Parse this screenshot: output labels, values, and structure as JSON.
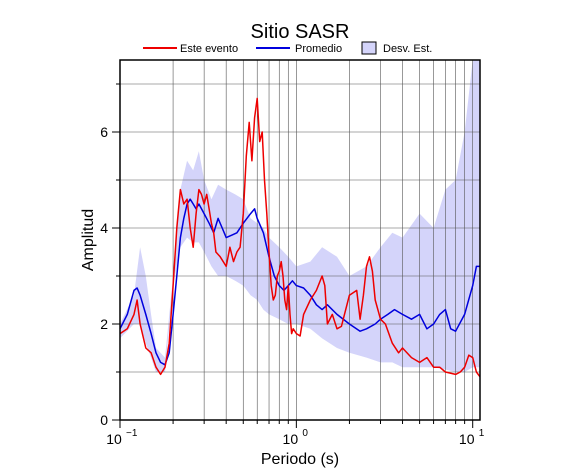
{
  "chart_data": {
    "type": "line",
    "title": "Sitio SASR",
    "xlabel": "Periodo (s)",
    "ylabel": "Amplitud",
    "x_scale": "log",
    "xlim": [
      0.1,
      11
    ],
    "ylim": [
      0,
      7.5
    ],
    "grid": true,
    "legend_position": "top",
    "x_ticks": [
      {
        "value": 0.1,
        "base": "10",
        "exp": "−1"
      },
      {
        "value": 1,
        "base": "10",
        "exp": "0"
      },
      {
        "value": 10,
        "base": "10",
        "exp": "1"
      }
    ],
    "y_ticks": [
      "0",
      "2",
      "4",
      "6"
    ],
    "y_tick_values": [
      0,
      2,
      4,
      6
    ],
    "legend": [
      {
        "label": "Este evento",
        "kind": "line",
        "color": "#ee0000"
      },
      {
        "label": "Promedio",
        "kind": "line",
        "color": "#0000dd"
      },
      {
        "label": "Desv. Est.",
        "kind": "band",
        "color": "#d4d4fa"
      }
    ],
    "band": {
      "name": "Desv. Est.",
      "color": "#d4d4fa",
      "upper": [
        [
          0.1,
          2.0
        ],
        [
          0.12,
          2.6
        ],
        [
          0.13,
          3.6
        ],
        [
          0.14,
          3.0
        ],
        [
          0.15,
          2.2
        ],
        [
          0.16,
          1.5
        ],
        [
          0.18,
          1.3
        ],
        [
          0.2,
          3.0
        ],
        [
          0.22,
          4.8
        ],
        [
          0.24,
          5.4
        ],
        [
          0.26,
          5.2
        ],
        [
          0.28,
          5.6
        ],
        [
          0.3,
          5.0
        ],
        [
          0.33,
          4.6
        ],
        [
          0.36,
          4.9
        ],
        [
          0.4,
          4.8
        ],
        [
          0.45,
          4.7
        ],
        [
          0.5,
          4.6
        ],
        [
          0.55,
          4.2
        ],
        [
          0.6,
          4.1
        ],
        [
          0.65,
          4.0
        ],
        [
          0.7,
          3.8
        ],
        [
          0.8,
          3.6
        ],
        [
          0.9,
          3.4
        ],
        [
          1.0,
          3.2
        ],
        [
          1.2,
          3.3
        ],
        [
          1.4,
          3.6
        ],
        [
          1.7,
          3.4
        ],
        [
          2.0,
          3.0
        ],
        [
          2.5,
          3.2
        ],
        [
          3.0,
          3.6
        ],
        [
          3.5,
          3.9
        ],
        [
          4.0,
          3.8
        ],
        [
          5.0,
          4.3
        ],
        [
          6.0,
          4.0
        ],
        [
          7.0,
          4.8
        ],
        [
          8.0,
          5.0
        ],
        [
          9.0,
          6.0
        ],
        [
          10.0,
          7.5
        ],
        [
          11.0,
          7.5
        ]
      ],
      "lower": [
        [
          0.1,
          1.7
        ],
        [
          0.12,
          2.0
        ],
        [
          0.13,
          2.0
        ],
        [
          0.14,
          1.6
        ],
        [
          0.15,
          1.3
        ],
        [
          0.16,
          1.0
        ],
        [
          0.18,
          1.0
        ],
        [
          0.2,
          2.8
        ],
        [
          0.22,
          3.6
        ],
        [
          0.24,
          3.8
        ],
        [
          0.26,
          3.7
        ],
        [
          0.28,
          3.7
        ],
        [
          0.3,
          3.5
        ],
        [
          0.33,
          3.2
        ],
        [
          0.36,
          3.0
        ],
        [
          0.4,
          3.0
        ],
        [
          0.45,
          2.9
        ],
        [
          0.5,
          2.8
        ],
        [
          0.55,
          2.6
        ],
        [
          0.6,
          2.5
        ],
        [
          0.65,
          2.3
        ],
        [
          0.7,
          2.2
        ],
        [
          0.8,
          2.1
        ],
        [
          0.9,
          2.0
        ],
        [
          1.0,
          2.0
        ],
        [
          1.2,
          1.9
        ],
        [
          1.4,
          1.7
        ],
        [
          1.7,
          1.5
        ],
        [
          2.0,
          1.4
        ],
        [
          2.5,
          1.3
        ],
        [
          3.0,
          1.2
        ],
        [
          3.5,
          1.2
        ],
        [
          4.0,
          1.1
        ],
        [
          5.0,
          1.1
        ],
        [
          6.0,
          1.1
        ],
        [
          7.0,
          1.05
        ],
        [
          8.0,
          1.0
        ],
        [
          9.0,
          1.0
        ],
        [
          10.0,
          1.1
        ],
        [
          11.0,
          1.1
        ]
      ]
    },
    "series": [
      {
        "name": "Promedio",
        "color": "#0000dd",
        "points": [
          [
            0.1,
            1.9
          ],
          [
            0.11,
            2.2
          ],
          [
            0.12,
            2.7
          ],
          [
            0.125,
            2.75
          ],
          [
            0.13,
            2.6
          ],
          [
            0.14,
            2.2
          ],
          [
            0.15,
            1.8
          ],
          [
            0.16,
            1.4
          ],
          [
            0.17,
            1.2
          ],
          [
            0.18,
            1.15
          ],
          [
            0.19,
            1.4
          ],
          [
            0.2,
            2.2
          ],
          [
            0.21,
            3.0
          ],
          [
            0.22,
            3.8
          ],
          [
            0.23,
            4.2
          ],
          [
            0.24,
            4.5
          ],
          [
            0.25,
            4.6
          ],
          [
            0.26,
            4.5
          ],
          [
            0.27,
            4.4
          ],
          [
            0.28,
            4.5
          ],
          [
            0.3,
            4.3
          ],
          [
            0.32,
            4.1
          ],
          [
            0.34,
            3.9
          ],
          [
            0.36,
            4.2
          ],
          [
            0.38,
            4.0
          ],
          [
            0.4,
            3.8
          ],
          [
            0.43,
            3.85
          ],
          [
            0.46,
            3.9
          ],
          [
            0.5,
            4.1
          ],
          [
            0.55,
            4.3
          ],
          [
            0.58,
            4.4
          ],
          [
            0.6,
            4.2
          ],
          [
            0.65,
            3.9
          ],
          [
            0.7,
            3.4
          ],
          [
            0.75,
            3.0
          ],
          [
            0.8,
            2.8
          ],
          [
            0.85,
            2.7
          ],
          [
            0.9,
            2.8
          ],
          [
            0.95,
            2.9
          ],
          [
            1.0,
            2.8
          ],
          [
            1.1,
            2.75
          ],
          [
            1.2,
            2.6
          ],
          [
            1.3,
            2.4
          ],
          [
            1.4,
            2.3
          ],
          [
            1.5,
            2.4
          ],
          [
            1.7,
            2.2
          ],
          [
            2.0,
            2.0
          ],
          [
            2.3,
            1.85
          ],
          [
            2.5,
            1.9
          ],
          [
            2.8,
            2.0
          ],
          [
            3.0,
            2.1
          ],
          [
            3.3,
            2.2
          ],
          [
            3.6,
            2.3
          ],
          [
            4.0,
            2.2
          ],
          [
            4.5,
            2.1
          ],
          [
            5.0,
            2.2
          ],
          [
            5.5,
            1.9
          ],
          [
            6.0,
            2.0
          ],
          [
            6.5,
            2.2
          ],
          [
            7.0,
            2.3
          ],
          [
            7.5,
            1.9
          ],
          [
            8.0,
            1.85
          ],
          [
            9.0,
            2.2
          ],
          [
            10.0,
            2.8
          ],
          [
            10.5,
            3.2
          ],
          [
            11.0,
            3.2
          ]
        ]
      },
      {
        "name": "Este evento",
        "color": "#ee0000",
        "points": [
          [
            0.1,
            1.8
          ],
          [
            0.11,
            1.9
          ],
          [
            0.12,
            2.2
          ],
          [
            0.125,
            2.5
          ],
          [
            0.13,
            2.0
          ],
          [
            0.14,
            1.5
          ],
          [
            0.15,
            1.4
          ],
          [
            0.16,
            1.1
          ],
          [
            0.17,
            0.95
          ],
          [
            0.18,
            1.1
          ],
          [
            0.19,
            1.6
          ],
          [
            0.2,
            2.8
          ],
          [
            0.21,
            4.0
          ],
          [
            0.22,
            4.8
          ],
          [
            0.23,
            4.5
          ],
          [
            0.24,
            4.6
          ],
          [
            0.25,
            4.0
          ],
          [
            0.26,
            3.6
          ],
          [
            0.27,
            4.3
          ],
          [
            0.28,
            4.8
          ],
          [
            0.29,
            4.7
          ],
          [
            0.3,
            4.5
          ],
          [
            0.31,
            4.7
          ],
          [
            0.32,
            4.4
          ],
          [
            0.33,
            4.1
          ],
          [
            0.34,
            3.9
          ],
          [
            0.35,
            3.5
          ],
          [
            0.37,
            3.4
          ],
          [
            0.4,
            3.2
          ],
          [
            0.42,
            3.6
          ],
          [
            0.44,
            3.3
          ],
          [
            0.46,
            3.5
          ],
          [
            0.48,
            3.6
          ],
          [
            0.5,
            4.3
          ],
          [
            0.52,
            5.5
          ],
          [
            0.54,
            6.2
          ],
          [
            0.56,
            5.4
          ],
          [
            0.58,
            6.3
          ],
          [
            0.6,
            6.7
          ],
          [
            0.62,
            5.8
          ],
          [
            0.64,
            6.0
          ],
          [
            0.66,
            5.0
          ],
          [
            0.68,
            4.3
          ],
          [
            0.7,
            3.5
          ],
          [
            0.72,
            2.8
          ],
          [
            0.74,
            2.5
          ],
          [
            0.76,
            2.6
          ],
          [
            0.78,
            3.0
          ],
          [
            0.8,
            3.1
          ],
          [
            0.82,
            3.3
          ],
          [
            0.84,
            3.0
          ],
          [
            0.86,
            2.5
          ],
          [
            0.88,
            2.3
          ],
          [
            0.9,
            2.8
          ],
          [
            0.92,
            2.2
          ],
          [
            0.94,
            1.8
          ],
          [
            0.96,
            1.9
          ],
          [
            1.0,
            1.8
          ],
          [
            1.05,
            1.75
          ],
          [
            1.1,
            2.2
          ],
          [
            1.2,
            2.5
          ],
          [
            1.3,
            2.7
          ],
          [
            1.4,
            3.0
          ],
          [
            1.45,
            2.8
          ],
          [
            1.5,
            2.0
          ],
          [
            1.6,
            2.2
          ],
          [
            1.7,
            1.9
          ],
          [
            1.8,
            1.95
          ],
          [
            2.0,
            2.6
          ],
          [
            2.2,
            2.7
          ],
          [
            2.3,
            2.1
          ],
          [
            2.4,
            2.6
          ],
          [
            2.5,
            3.2
          ],
          [
            2.6,
            3.4
          ],
          [
            2.7,
            3.1
          ],
          [
            2.8,
            2.5
          ],
          [
            3.0,
            2.1
          ],
          [
            3.2,
            2.0
          ],
          [
            3.5,
            1.6
          ],
          [
            3.8,
            1.4
          ],
          [
            4.0,
            1.5
          ],
          [
            4.5,
            1.3
          ],
          [
            5.0,
            1.2
          ],
          [
            5.5,
            1.3
          ],
          [
            6.0,
            1.1
          ],
          [
            6.5,
            1.1
          ],
          [
            7.0,
            1.0
          ],
          [
            8.0,
            0.95
          ],
          [
            8.5,
            1.0
          ],
          [
            9.0,
            1.1
          ],
          [
            9.5,
            1.35
          ],
          [
            10.0,
            1.3
          ],
          [
            10.5,
            1.0
          ],
          [
            11.0,
            0.9
          ]
        ]
      }
    ]
  }
}
